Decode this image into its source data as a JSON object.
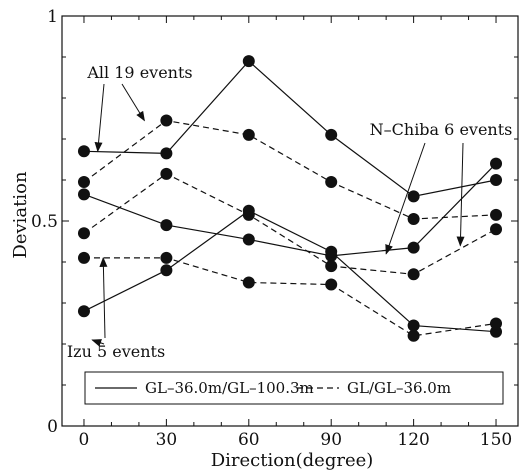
{
  "chart_data": {
    "type": "line",
    "xlabel": "Direction(degree)",
    "ylabel": "Deviation",
    "x": [
      0,
      30,
      60,
      90,
      120,
      150
    ],
    "xlim": [
      -8,
      158
    ],
    "ylim": [
      0,
      1
    ],
    "x_ticks": [
      0,
      30,
      60,
      90,
      120,
      150
    ],
    "x_tick_labels": [
      "0",
      "30",
      "60",
      "90",
      "120",
      "150"
    ],
    "y_ticks": [
      0,
      0.5,
      1
    ],
    "y_tick_labels": [
      "0",
      "0.5",
      "1"
    ],
    "grid": false,
    "series": [
      {
        "group": "All 19 events",
        "style": "solid",
        "values": [
          0.565,
          0.49,
          0.455,
          0.415,
          0.435,
          0.64
        ]
      },
      {
        "group": "All 19 events",
        "style": "dashed",
        "values": [
          0.47,
          0.615,
          0.515,
          0.39,
          0.37,
          0.48
        ]
      },
      {
        "group": "N-Chiba 6 events",
        "style": "solid",
        "values": [
          0.67,
          0.665,
          0.89,
          0.71,
          0.56,
          0.6
        ]
      },
      {
        "group": "N-Chiba 6 events",
        "style": "dashed",
        "values": [
          0.595,
          0.745,
          0.71,
          0.595,
          0.505,
          0.515
        ]
      },
      {
        "group": "Izu 5 events",
        "style": "solid",
        "values": [
          0.28,
          0.38,
          0.525,
          0.425,
          0.245,
          0.23
        ]
      },
      {
        "group": "Izu 5 events",
        "style": "dashed",
        "values": [
          0.41,
          0.41,
          0.35,
          0.345,
          0.22,
          0.25
        ]
      }
    ],
    "annotations": [
      {
        "text": "All 19 events",
        "arrows_to": [
          [
            5,
            0.67
          ],
          [
            22,
            0.745
          ]
        ]
      },
      {
        "text": "N–Chiba 6 events",
        "arrows_to": [
          [
            110,
            0.42
          ],
          [
            137,
            0.44
          ]
        ]
      },
      {
        "text": "Izu 5 events",
        "arrows_to": [
          [
            7,
            0.41
          ],
          [
            3,
            0.21
          ]
        ]
      }
    ],
    "legend": {
      "placement": "bottom",
      "entries": [
        {
          "label": "GL–36.0m/GL–100.3m",
          "style": "solid"
        },
        {
          "label": "GL/GL–36.0m",
          "style": "dashed"
        }
      ]
    }
  }
}
